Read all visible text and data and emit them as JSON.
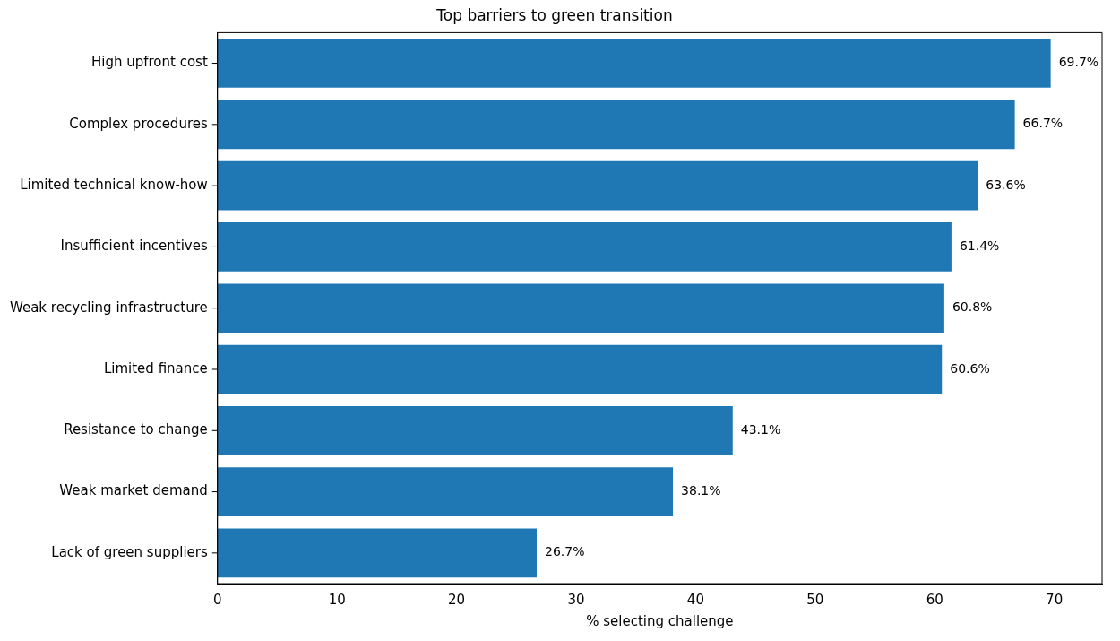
{
  "chart_data": {
    "type": "bar",
    "orientation": "horizontal",
    "title": "Top barriers to green transition",
    "xlabel": "% selecting challenge",
    "categories": [
      "High upfront cost",
      "Complex procedures",
      "Limited technical know-how",
      "Insufficient incentives",
      "Weak recycling infrastructure",
      "Limited finance",
      "Resistance to change",
      "Weak market demand",
      "Lack of green suppliers"
    ],
    "values": [
      69.7,
      66.7,
      63.6,
      61.4,
      60.8,
      60.6,
      43.1,
      38.1,
      26.7
    ],
    "value_labels": [
      "69.7%",
      "66.7%",
      "63.6%",
      "61.4%",
      "60.8%",
      "60.6%",
      "43.1%",
      "38.1%",
      "26.7%"
    ],
    "color": "#1f77b4",
    "xlim": [
      0,
      74
    ],
    "xticks": [
      0,
      10,
      20,
      30,
      40,
      50,
      60,
      70
    ],
    "grid": false,
    "legend": false
  }
}
